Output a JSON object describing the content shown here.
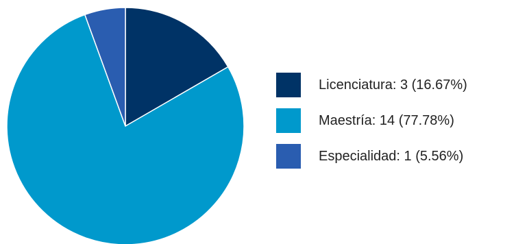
{
  "chart_data": {
    "type": "pie",
    "categories": [
      "Licenciatura",
      "Maestría",
      "Especialidad"
    ],
    "values": [
      3,
      14,
      1
    ],
    "percentages": [
      16.67,
      77.78,
      5.56
    ],
    "colors": [
      "#003366",
      "#0099cc",
      "#2a5db0"
    ],
    "legend_labels": [
      "Licenciatura: 3 (16.67%)",
      "Maestría: 14 (77.78%)",
      "Especialidad: 1 (5.56%)"
    ],
    "legend_placement": "right",
    "title": ""
  }
}
